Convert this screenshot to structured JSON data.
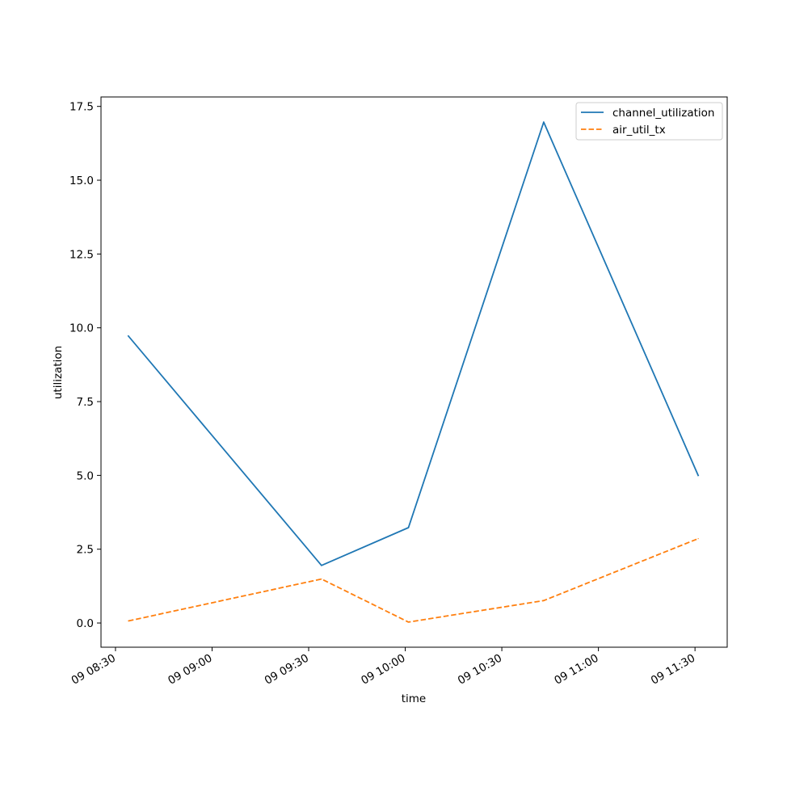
{
  "chart_data": {
    "type": "line",
    "title": "",
    "xlabel": "time",
    "ylabel": "utilization",
    "x": [
      "09 08:34",
      "09 09:34",
      "09 10:01",
      "09 10:43",
      "09 11:31"
    ],
    "series": [
      {
        "name": "channel_utilization",
        "values": [
          9.72,
          1.95,
          3.23,
          16.97,
          5.0
        ],
        "color": "#1f77b4",
        "style": "solid"
      },
      {
        "name": "air_util_tx",
        "values": [
          0.07,
          1.49,
          0.03,
          0.76,
          2.86
        ],
        "color": "#ff7f0e",
        "style": "dashed"
      }
    ],
    "x_ticks": [
      "09 08:30",
      "09 09:00",
      "09 09:30",
      "09 10:00",
      "09 10:30",
      "09 11:00",
      "09 11:30"
    ],
    "x_tick_minutes": [
      510,
      540,
      570,
      600,
      630,
      660,
      690
    ],
    "x_point_minutes": [
      514,
      574,
      601,
      643,
      691
    ],
    "xlim": [
      505.5,
      700
    ],
    "y_ticks": [
      0.0,
      2.5,
      5.0,
      7.5,
      10.0,
      12.5,
      15.0,
      17.5
    ],
    "ylim": [
      -0.82,
      17.82
    ],
    "grid": false,
    "legend_position": "top-right"
  }
}
